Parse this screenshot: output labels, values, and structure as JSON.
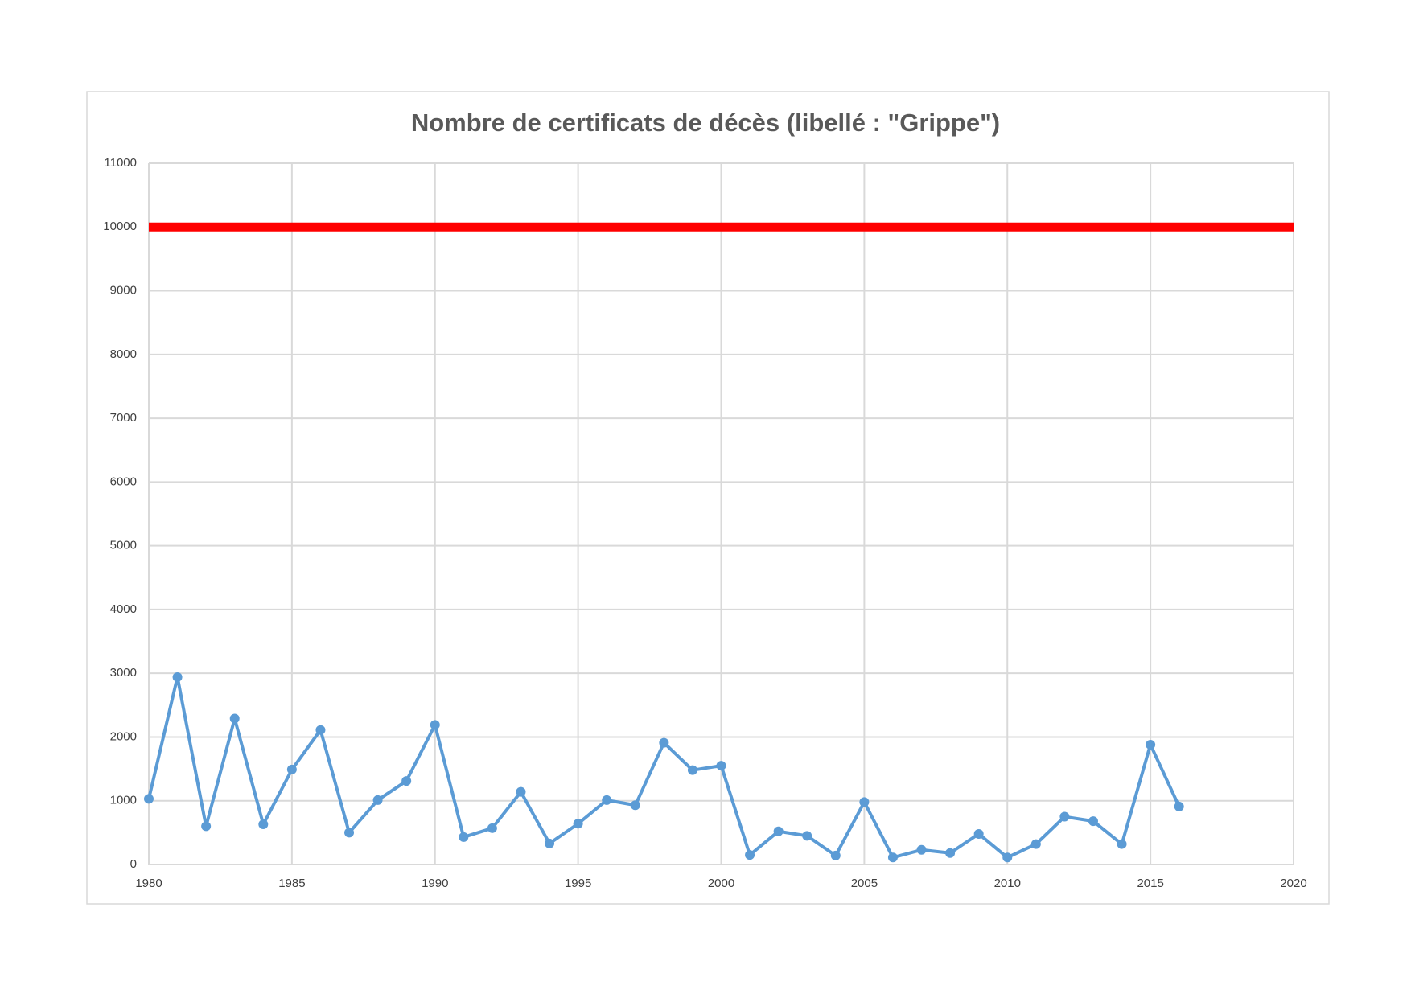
{
  "chart_data": {
    "type": "line",
    "title": "Nombre de certificats de décès (libellé : \"Grippe\")",
    "x": [
      1980,
      1981,
      1982,
      1983,
      1984,
      1985,
      1986,
      1987,
      1988,
      1989,
      1990,
      1991,
      1992,
      1993,
      1994,
      1995,
      1996,
      1997,
      1998,
      1999,
      2000,
      2001,
      2002,
      2003,
      2004,
      2005,
      2006,
      2007,
      2008,
      2009,
      2010,
      2011,
      2012,
      2013,
      2014,
      2015,
      2016
    ],
    "series": [
      {
        "color": "#5b9bd5",
        "values": [
          1030,
          2940,
          600,
          2290,
          630,
          1490,
          2110,
          500,
          1010,
          1310,
          2190,
          430,
          570,
          1140,
          330,
          640,
          1010,
          930,
          1910,
          1480,
          1550,
          150,
          520,
          450,
          140,
          980,
          110,
          230,
          180,
          480,
          110,
          320,
          750,
          680,
          320,
          1880,
          910
        ]
      }
    ],
    "reference_lines": [
      {
        "y": 10000,
        "color": "#ff0000"
      }
    ],
    "xlim": [
      1980,
      2020
    ],
    "xticks": [
      1980,
      1985,
      1990,
      1995,
      2000,
      2005,
      2010,
      2015,
      2020
    ],
    "ylim": [
      0,
      11000
    ],
    "yticks": [
      0,
      1000,
      2000,
      3000,
      4000,
      5000,
      6000,
      7000,
      8000,
      9000,
      10000,
      11000
    ],
    "grid": true
  }
}
